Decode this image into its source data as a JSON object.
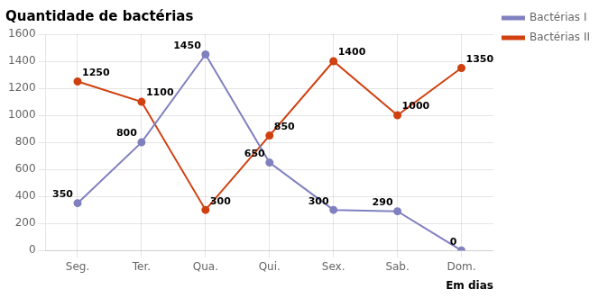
{
  "chart_data": {
    "type": "line",
    "title": "Quantidade de bactérias",
    "xlabel": "Em dias",
    "categories": [
      "Seg.",
      "Ter.",
      "Qua.",
      "Qui.",
      "Sex.",
      "Sab.",
      "Dom."
    ],
    "series": [
      {
        "name": "Bactérias I",
        "color": "#8080c0",
        "marker": "circle",
        "values": [
          350,
          800,
          1450,
          650,
          300,
          290,
          0
        ]
      },
      {
        "name": "Bactérias II",
        "color": "#d04010",
        "marker": "circle",
        "values": [
          1250,
          1100,
          300,
          850,
          1400,
          1000,
          1350
        ]
      }
    ],
    "ylim": [
      0,
      1600
    ],
    "yticks": [
      0,
      200,
      400,
      600,
      800,
      1000,
      1200,
      1400,
      1600
    ],
    "grid": true,
    "legend": "right",
    "data_labels": true
  }
}
